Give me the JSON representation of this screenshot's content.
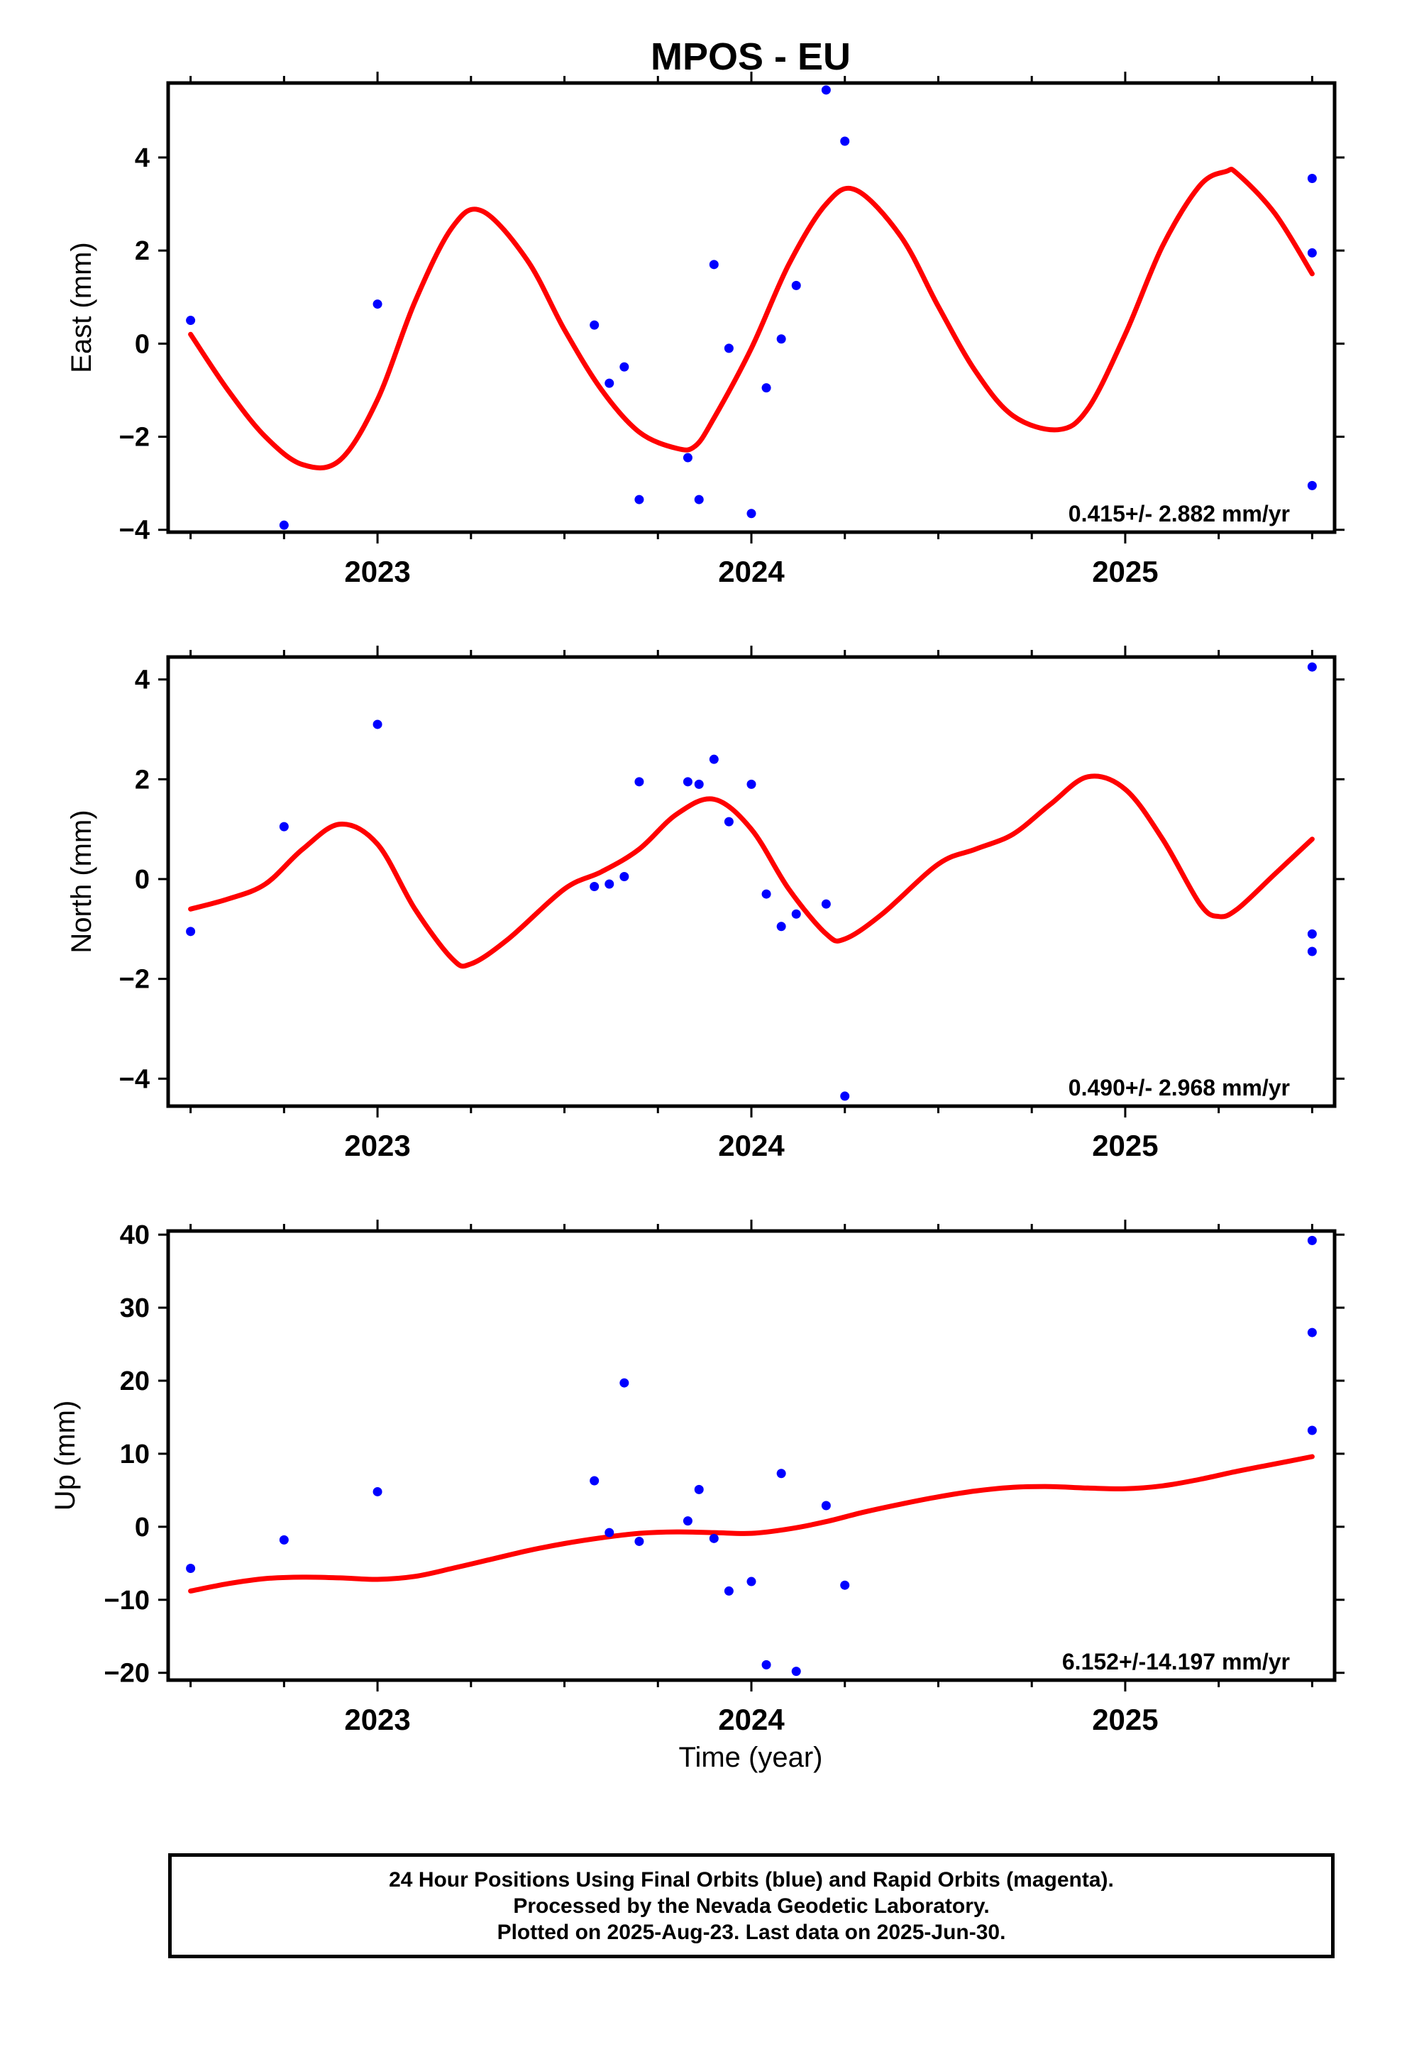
{
  "title": "MPOS - EU",
  "xlabel": "Time (year)",
  "footer": {
    "line1": "24 Hour Positions Using Final Orbits (blue) and Rapid Orbits (magenta).",
    "line2": "Processed by the Nevada Geodetic Laboratory.",
    "line3": "Plotted on 2025-Aug-23. Last data on 2025-Jun-30."
  },
  "colors": {
    "points": "#0000ff",
    "fit": "#ff0000",
    "frame": "#000000"
  },
  "chart_data": [
    {
      "type": "scatter",
      "ylabel": "East (mm)",
      "rate": "0.415+/- 2.882 mm/yr",
      "xlim": [
        2022.44,
        2025.56
      ],
      "ylim": [
        -4.05,
        5.6
      ],
      "yticks": [
        -4,
        -2,
        0,
        2,
        4
      ],
      "ytick_labels": [
        "−4",
        "−2",
        "0",
        "2",
        "4"
      ],
      "xticks": [
        2023,
        2024,
        2025
      ],
      "xtick_labels": [
        "2023",
        "2024",
        "2025"
      ],
      "points": {
        "x": [
          2022.5,
          2022.75,
          2023.0,
          2023.58,
          2023.62,
          2023.66,
          2023.7,
          2023.83,
          2023.86,
          2023.9,
          2023.94,
          2024.0,
          2024.04,
          2024.08,
          2024.12,
          2024.2,
          2024.25,
          2025.5,
          2025.5,
          2025.5
        ],
        "y": [
          0.5,
          -3.9,
          0.85,
          0.4,
          -0.85,
          -0.5,
          -3.35,
          -2.45,
          -3.35,
          1.7,
          -0.1,
          -3.65,
          -0.95,
          0.1,
          1.25,
          5.45,
          4.35,
          3.55,
          1.95,
          -3.05
        ]
      },
      "fit": {
        "x": [
          2022.5,
          2022.6,
          2022.7,
          2022.8,
          2022.9,
          2023.0,
          2023.1,
          2023.2,
          2023.28,
          2023.4,
          2023.5,
          2023.6,
          2023.7,
          2023.8,
          2023.85,
          2023.9,
          2024.0,
          2024.1,
          2024.2,
          2024.28,
          2024.4,
          2024.5,
          2024.6,
          2024.7,
          2024.82,
          2024.9,
          2025.0,
          2025.1,
          2025.2,
          2025.27,
          2025.3,
          2025.4,
          2025.5
        ],
        "y": [
          0.2,
          -1.0,
          -2.0,
          -2.6,
          -2.5,
          -1.2,
          0.9,
          2.5,
          2.85,
          1.8,
          0.3,
          -1.0,
          -1.9,
          -2.25,
          -2.2,
          -1.6,
          -0.1,
          1.7,
          3.0,
          3.3,
          2.3,
          0.8,
          -0.6,
          -1.55,
          -1.85,
          -1.4,
          0.2,
          2.1,
          3.4,
          3.7,
          3.65,
          2.8,
          1.5
        ]
      }
    },
    {
      "type": "scatter",
      "ylabel": "North (mm)",
      "rate": "0.490+/- 2.968 mm/yr",
      "xlim": [
        2022.44,
        2025.56
      ],
      "ylim": [
        -4.55,
        4.45
      ],
      "yticks": [
        -4,
        -2,
        0,
        2,
        4
      ],
      "ytick_labels": [
        "−4",
        "−2",
        "0",
        "2",
        "4"
      ],
      "xticks": [
        2023,
        2024,
        2025
      ],
      "xtick_labels": [
        "2023",
        "2024",
        "2025"
      ],
      "points": {
        "x": [
          2022.5,
          2022.75,
          2023.0,
          2023.58,
          2023.62,
          2023.66,
          2023.7,
          2023.83,
          2023.86,
          2023.9,
          2023.94,
          2024.0,
          2024.04,
          2024.08,
          2024.12,
          2024.2,
          2024.25,
          2025.5,
          2025.5,
          2025.5
        ],
        "y": [
          -1.05,
          1.05,
          3.1,
          -0.15,
          -0.1,
          0.05,
          1.95,
          1.95,
          1.9,
          2.4,
          1.15,
          1.9,
          -0.3,
          -0.95,
          -0.7,
          -0.5,
          -4.35,
          4.25,
          -1.1,
          -1.45
        ]
      },
      "fit": {
        "x": [
          2022.5,
          2022.6,
          2022.7,
          2022.8,
          2022.9,
          2023.0,
          2023.1,
          2023.2,
          2023.25,
          2023.35,
          2023.5,
          2023.6,
          2023.7,
          2023.8,
          2023.9,
          2024.0,
          2024.1,
          2024.2,
          2024.25,
          2024.35,
          2024.5,
          2024.6,
          2024.7,
          2024.8,
          2024.9,
          2025.0,
          2025.1,
          2025.2,
          2025.25,
          2025.3,
          2025.4,
          2025.5
        ],
        "y": [
          -0.6,
          -0.4,
          -0.1,
          0.6,
          1.1,
          0.7,
          -0.6,
          -1.6,
          -1.7,
          -1.2,
          -0.2,
          0.15,
          0.6,
          1.3,
          1.6,
          1.0,
          -0.2,
          -1.1,
          -1.2,
          -0.7,
          0.3,
          0.6,
          0.9,
          1.5,
          2.05,
          1.8,
          0.8,
          -0.5,
          -0.75,
          -0.6,
          0.1,
          0.8
        ]
      }
    },
    {
      "type": "scatter",
      "ylabel": "Up (mm)",
      "rate": "6.152+/-14.197 mm/yr",
      "xlim": [
        2022.44,
        2025.56
      ],
      "ylim": [
        -21,
        40.5
      ],
      "yticks": [
        -20,
        -10,
        0,
        10,
        20,
        30,
        40
      ],
      "ytick_labels": [
        "−20",
        "−10",
        "0",
        "10",
        "20",
        "30",
        "40"
      ],
      "xticks": [
        2023,
        2024,
        2025
      ],
      "xtick_labels": [
        "2023",
        "2024",
        "2025"
      ],
      "points": {
        "x": [
          2022.5,
          2022.75,
          2023.0,
          2023.58,
          2023.62,
          2023.66,
          2023.7,
          2023.83,
          2023.86,
          2023.9,
          2023.94,
          2024.0,
          2024.04,
          2024.08,
          2024.12,
          2024.2,
          2024.25,
          2025.5,
          2025.5,
          2025.5
        ],
        "y": [
          -5.7,
          -1.8,
          4.8,
          6.3,
          -0.8,
          19.7,
          -2.0,
          0.8,
          5.1,
          -1.6,
          -8.8,
          -7.5,
          -18.9,
          7.3,
          -19.8,
          2.9,
          -8.0,
          39.2,
          26.6,
          13.2
        ]
      },
      "fit": {
        "x": [
          2022.5,
          2022.6,
          2022.7,
          2022.8,
          2022.9,
          2023.0,
          2023.1,
          2023.2,
          2023.3,
          2023.4,
          2023.5,
          2023.6,
          2023.7,
          2023.8,
          2023.9,
          2024.0,
          2024.1,
          2024.2,
          2024.3,
          2024.4,
          2024.5,
          2024.6,
          2024.7,
          2024.8,
          2024.9,
          2025.0,
          2025.1,
          2025.2,
          2025.3,
          2025.4,
          2025.5
        ],
        "y": [
          -8.8,
          -7.8,
          -7.1,
          -6.9,
          -7.0,
          -7.2,
          -6.8,
          -5.7,
          -4.5,
          -3.3,
          -2.3,
          -1.5,
          -0.9,
          -0.7,
          -0.8,
          -0.9,
          -0.3,
          0.7,
          2.0,
          3.1,
          4.1,
          4.9,
          5.4,
          5.5,
          5.3,
          5.2,
          5.6,
          6.5,
          7.6,
          8.6,
          9.6
        ]
      }
    }
  ]
}
